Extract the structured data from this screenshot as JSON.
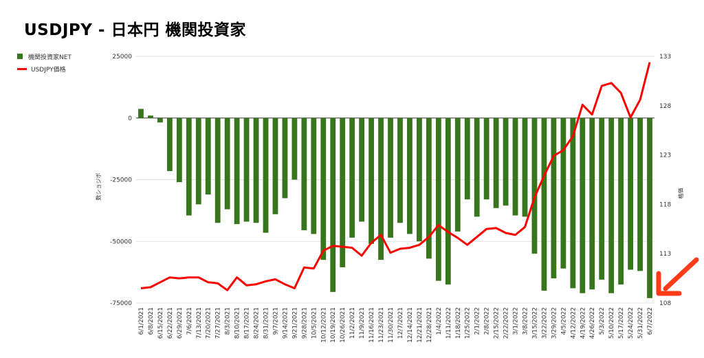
{
  "title": "USDJPY - 日本円 機関投資家",
  "legend": {
    "bars": "機関投資家NET",
    "line": "USDJPY価格"
  },
  "colors": {
    "bar": "#38761d",
    "line": "#ff0000",
    "arrow": "#ff3b1a",
    "grid": "#d9d9d9",
    "zero": "#333333"
  },
  "chart_data": {
    "type": "bar+line",
    "categories": [
      "6/1/2021",
      "6/8/2021",
      "6/15/2021",
      "6/22/2021",
      "6/29/2021",
      "7/6/2021",
      "7/13/2021",
      "7/20/2021",
      "7/27/2021",
      "8/3/2021",
      "8/10/2021",
      "8/17/2021",
      "8/24/2021",
      "8/31/2021",
      "9/7/2021",
      "9/14/2021",
      "9/21/2021",
      "9/28/2021",
      "10/5/2021",
      "10/12/2021",
      "10/19/2021",
      "10/26/2021",
      "11/2/2021",
      "11/9/2021",
      "11/16/2021",
      "11/23/2021",
      "11/30/2021",
      "12/7/2021",
      "12/14/2021",
      "12/21/2021",
      "12/28/2021",
      "1/4/2022",
      "1/11/2022",
      "1/18/2022",
      "1/25/2022",
      "2/1/2022",
      "2/8/2022",
      "2/15/2022",
      "2/22/2022",
      "3/1/2022",
      "3/8/2022",
      "3/15/2022",
      "3/22/2022",
      "3/29/2022",
      "4/5/2022",
      "4/12/2022",
      "4/19/2022",
      "4/26/2022",
      "5/3/2022",
      "5/10/2022",
      "5/17/2022",
      "5/24/2022",
      "5/31/2022",
      "6/7/2022"
    ],
    "x_tick_labels": [
      "6/1/2021",
      "6/8/2021",
      "6/15/2021",
      "6/22/2021",
      "6/29/2021",
      "7/6/2021",
      "7/13/2021",
      "7/20/2021",
      "7/27/2021",
      "8/3/2021",
      "8/10/2021",
      "8/17/2021",
      "8/24/2021",
      "8/31/2021",
      "9/7/2021",
      "9/14/2021",
      "9/21/2021",
      "9/28/2021",
      "10/5/2021",
      "10/12/2021",
      "10/19/2021",
      "10/26/2021",
      "11/2/2021",
      "11/9/2021",
      "11/16/2021",
      "11/23/2021",
      "11/30/2021",
      "12/7/2021",
      "12/14/2021",
      "12/21/2021",
      "12/28/2021",
      "1/4/2022",
      "1/11/2022",
      "1/18/2022",
      "1/25/2022",
      "2/1/2022",
      "2/8/2022",
      "2/15/2022",
      "2/22/2022",
      "3/1/2022",
      "3/8/2022",
      "3/15/2022",
      "3/22/2022",
      "3/29/2022",
      "4/5/2022",
      "4/12/2022",
      "4/19/2022",
      "4/26/2022",
      "5/3/2022",
      "5/10/2022",
      "5/17/2022",
      "5/24/2022",
      "5/31/2022",
      "6/7/2022"
    ],
    "series": [
      {
        "name": "機関投資家NET",
        "type": "bar",
        "axis": "left",
        "values": [
          3700,
          1000,
          -1800,
          -21500,
          -26000,
          -39500,
          -35000,
          -31000,
          -42500,
          -37000,
          -43000,
          -42000,
          -42500,
          -46500,
          -39000,
          -32500,
          -25000,
          -45500,
          -47000,
          -57500,
          -70500,
          -60500,
          -48500,
          -42000,
          -51000,
          -57500,
          -48500,
          -42500,
          -47000,
          -50000,
          -57000,
          -66000,
          -67500,
          -46000,
          -33000,
          -40000,
          -33000,
          -36500,
          -35500,
          -39500,
          -40000,
          -55000,
          -70000,
          -65000,
          -61000,
          -69000,
          -71000,
          -69500,
          -65500,
          -71000,
          -67500,
          -61500,
          -62000,
          -73000
        ]
      },
      {
        "name": "USDJPY価格",
        "type": "line",
        "axis": "right",
        "values": [
          109.5,
          109.6,
          110.1,
          110.6,
          110.5,
          110.6,
          110.6,
          110.1,
          110.0,
          109.3,
          110.6,
          109.8,
          109.9,
          110.2,
          110.4,
          109.9,
          109.5,
          111.6,
          111.5,
          113.3,
          113.8,
          113.7,
          113.6,
          112.8,
          114.1,
          114.9,
          113.1,
          113.5,
          113.6,
          113.9,
          114.7,
          115.9,
          115.2,
          114.6,
          113.9,
          114.7,
          115.5,
          115.6,
          115.1,
          114.9,
          115.7,
          118.7,
          120.9,
          122.9,
          123.5,
          124.9,
          128.1,
          127.1,
          130.0,
          130.3,
          129.3,
          126.8,
          128.6,
          132.4
        ]
      }
    ],
    "left_axis": {
      "ticks": [
        "25000",
        "0",
        "-25000",
        "-50000",
        "-75000"
      ],
      "ylim": [
        -75000,
        25000
      ],
      "label": "数ショジボ"
    },
    "right_axis": {
      "ticks": [
        "133",
        "128",
        "123",
        "118",
        "113",
        "108"
      ],
      "ylim": [
        108,
        133
      ],
      "label": "格価"
    },
    "grid": true,
    "legend_position": "top-left"
  }
}
